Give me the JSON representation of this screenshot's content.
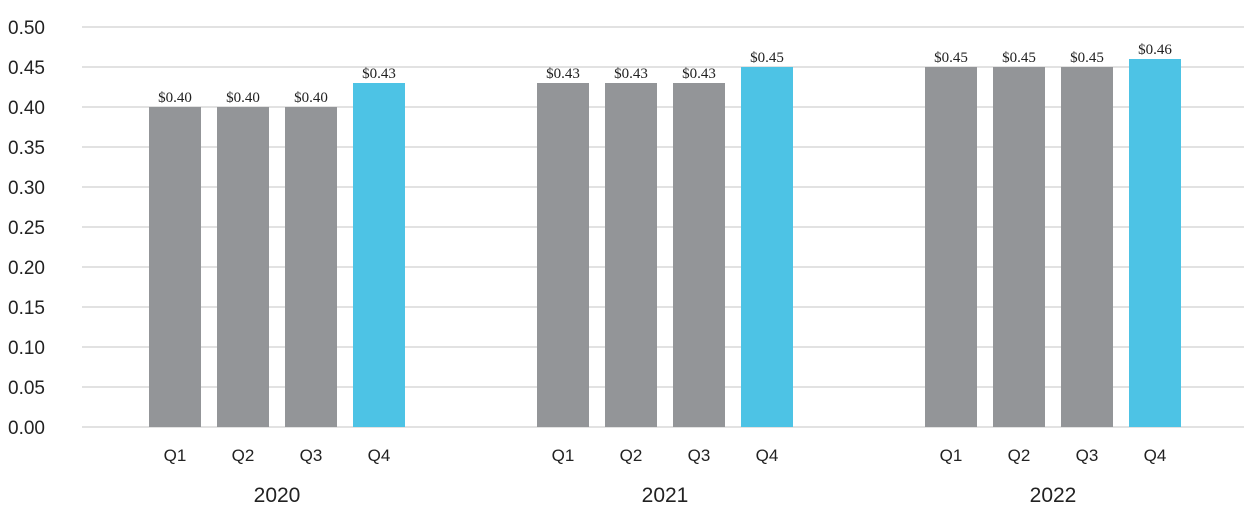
{
  "chart_data": {
    "type": "bar",
    "groups": [
      "2020",
      "2021",
      "2022"
    ],
    "categories": [
      "Q1",
      "Q2",
      "Q3",
      "Q4"
    ],
    "values": [
      [
        0.4,
        0.4,
        0.4,
        0.43
      ],
      [
        0.43,
        0.43,
        0.43,
        0.45
      ],
      [
        0.45,
        0.45,
        0.45,
        0.46
      ]
    ],
    "data_labels": [
      [
        "$0.40",
        "$0.40",
        "$0.40",
        "$0.43"
      ],
      [
        "$0.43",
        "$0.43",
        "$0.43",
        "$0.45"
      ],
      [
        "$0.45",
        "$0.45",
        "$0.45",
        "$0.46"
      ]
    ],
    "y_ticks": [
      "0.00",
      "0.05",
      "0.10",
      "0.15",
      "0.20",
      "0.25",
      "0.30",
      "0.35",
      "0.40",
      "0.45",
      "0.50"
    ],
    "ylim": [
      0,
      0.5
    ],
    "grid": true,
    "colors": {
      "q1_q3": "#939598",
      "q4": "#4dc3e5"
    }
  }
}
